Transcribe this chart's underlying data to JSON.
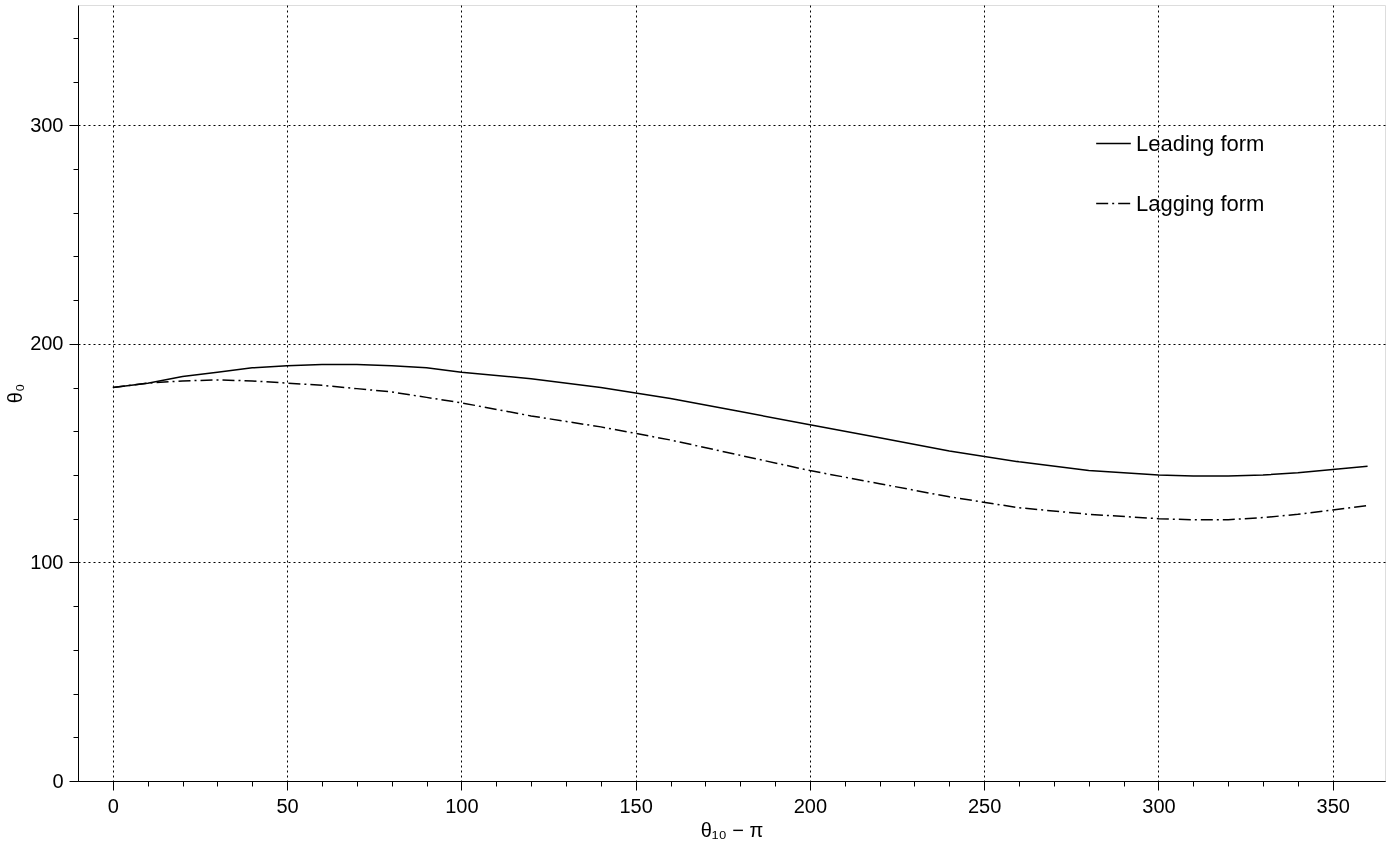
{
  "chart_data": {
    "type": "line",
    "xlabel": "θ₁₀ − π",
    "ylabel": "θ₀",
    "x": [
      0,
      10,
      20,
      30,
      40,
      50,
      60,
      70,
      80,
      90,
      100,
      120,
      140,
      160,
      180,
      200,
      220,
      240,
      260,
      280,
      300,
      310,
      320,
      330,
      340,
      350,
      360
    ],
    "series": [
      {
        "name": "Leading form",
        "color": "#000000",
        "line_style": "solid",
        "values": [
          180,
          182,
          185,
          187,
          189,
          190,
          190.5,
          190.5,
          190,
          189,
          187,
          184,
          180,
          175,
          169,
          163,
          157,
          151,
          146,
          142,
          140,
          139.5,
          139.5,
          140,
          141,
          142.5,
          144
        ]
      },
      {
        "name": "Lagging form",
        "color": "#000000",
        "line_style": "dashdot",
        "values": [
          180,
          182,
          183,
          183.5,
          183,
          182,
          181,
          179.5,
          178,
          175.5,
          173,
          167,
          162,
          156,
          149,
          142,
          136,
          130,
          125,
          122,
          120,
          119.5,
          119.5,
          120.5,
          122,
          124,
          126
        ]
      }
    ],
    "xlim": [
      -10,
      365
    ],
    "ylim": [
      0,
      355
    ],
    "xticks": [
      0,
      {
        "value": 10,
        "label": null
      },
      {
        "value": 20,
        "label": null
      },
      {
        "value": 30,
        "label": null
      },
      {
        "value": 40,
        "label": null
      },
      50,
      {
        "value": 60,
        "label": null
      },
      {
        "value": 70,
        "label": null
      },
      {
        "value": 80,
        "label": null
      },
      {
        "value": 90,
        "label": null
      },
      100,
      {
        "value": 110,
        "label": null
      },
      {
        "value": 120,
        "label": null
      },
      {
        "value": 130,
        "label": null
      },
      {
        "value": 140,
        "label": null
      },
      150,
      {
        "value": 160,
        "label": null
      },
      {
        "value": 170,
        "label": null
      },
      {
        "value": 180,
        "label": null
      },
      {
        "value": 190,
        "label": null
      },
      200,
      {
        "value": 210,
        "label": null
      },
      {
        "value": 220,
        "label": null
      },
      {
        "value": 230,
        "label": null
      },
      {
        "value": 240,
        "label": null
      },
      250,
      {
        "value": 260,
        "label": null
      },
      {
        "value": 270,
        "label": null
      },
      {
        "value": 280,
        "label": null
      },
      {
        "value": 290,
        "label": null
      },
      300,
      {
        "value": 310,
        "label": null
      },
      {
        "value": 320,
        "label": null
      },
      {
        "value": 330,
        "label": null
      },
      {
        "value": 340,
        "label": null
      },
      350
    ],
    "yticks": [
      0,
      {
        "value": 20,
        "label": null
      },
      {
        "value": 40,
        "label": null
      },
      {
        "value": 60,
        "label": null
      },
      {
        "value": 80,
        "label": null
      },
      100,
      {
        "value": 120,
        "label": null
      },
      {
        "value": 140,
        "label": null
      },
      {
        "value": 160,
        "label": null
      },
      {
        "value": 180,
        "label": null
      },
      200,
      {
        "value": 220,
        "label": null
      },
      {
        "value": 240,
        "label": null
      },
      {
        "value": 260,
        "label": null
      },
      {
        "value": 280,
        "label": null
      },
      300,
      {
        "value": 320,
        "label": null
      },
      {
        "value": 340,
        "label": null
      }
    ],
    "grid": true,
    "legend": "top right",
    "marker": "none"
  }
}
